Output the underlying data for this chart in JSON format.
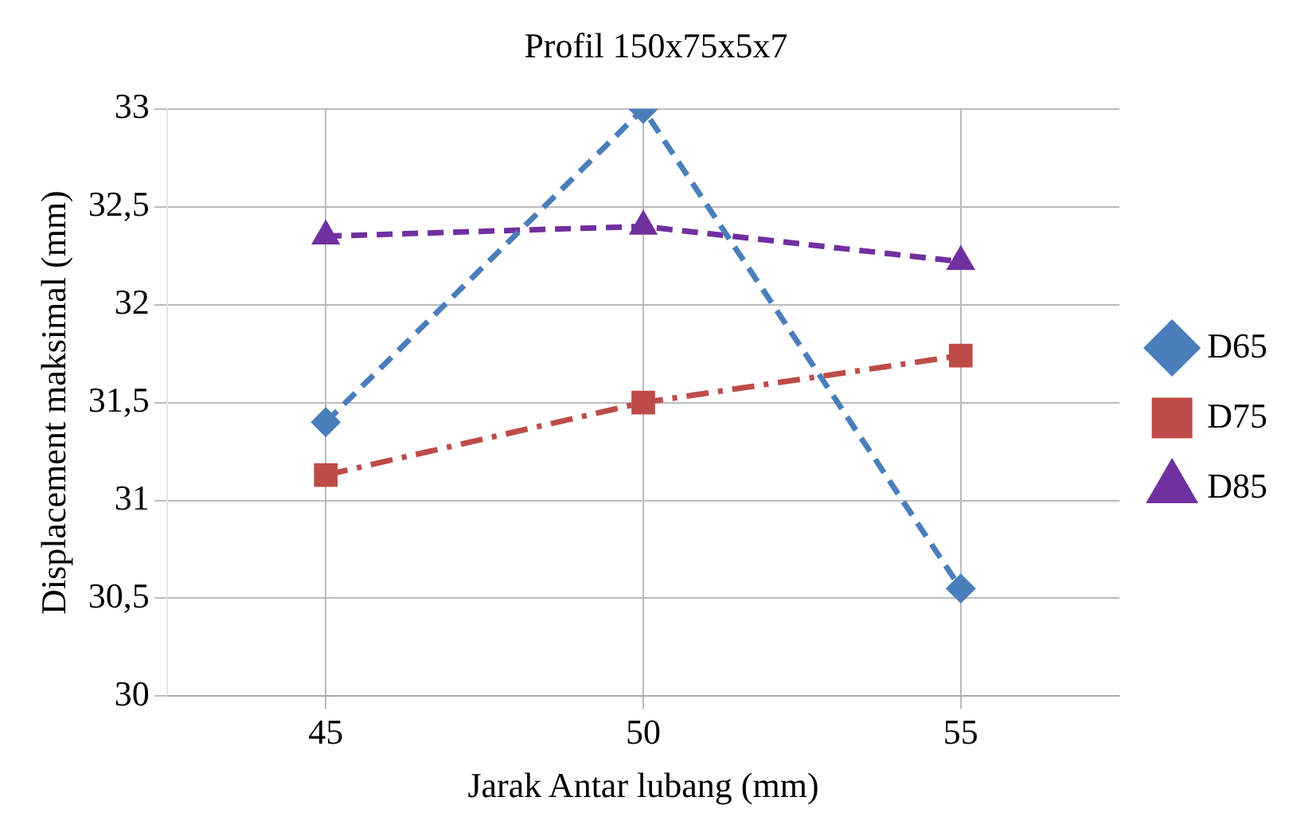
{
  "chart_data": {
    "type": "line",
    "title": "Profil 150x75x5x7",
    "xlabel": "Jarak Antar lubang (mm)",
    "ylabel": "Displacement maksimal (mm)",
    "categories": [
      "45",
      "50",
      "55"
    ],
    "series": [
      {
        "name": "D65",
        "color": "#4a7ebb",
        "values": [
          31.4,
          33.0,
          30.55
        ],
        "marker": "diamond",
        "line_style": "dashed"
      },
      {
        "name": "D75",
        "color": "#be4b48",
        "values": [
          31.13,
          31.5,
          31.74
        ],
        "marker": "square",
        "line_style": "dashdot"
      },
      {
        "name": "D85",
        "color": "#7030a0",
        "values": [
          32.35,
          32.4,
          32.22
        ],
        "marker": "triangle",
        "line_style": "dashed"
      }
    ],
    "ylim": [
      30,
      33
    ],
    "yticks": [
      30,
      {
        "value": 30.5,
        "label": "30,5"
      },
      31,
      {
        "value": 31.5,
        "label": "31,5"
      },
      32,
      {
        "value": 32.5,
        "label": "32,5"
      },
      33
    ],
    "grid": true,
    "legend": "right"
  }
}
